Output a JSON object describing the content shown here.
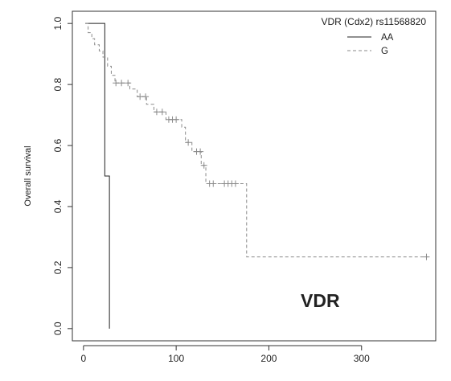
{
  "chart_data": {
    "type": "line",
    "subtype": "kaplan-meier",
    "title": "",
    "xlabel": "",
    "ylabel": "Overall survival",
    "xlim": [
      -12,
      380
    ],
    "ylim": [
      -0.04,
      1.04
    ],
    "x_ticks": [
      0,
      100,
      200,
      300
    ],
    "y_ticks": [
      0.0,
      0.2,
      0.4,
      0.6,
      0.8,
      1.0
    ],
    "x_tick_labels": [
      "0",
      "100",
      "200",
      "300"
    ],
    "y_tick_labels": [
      "0.0",
      "0.2",
      "0.4",
      "0.6",
      "0.8",
      "1.0"
    ],
    "grid": false,
    "legend": {
      "title": "VDR (Cdx2) rs11568820",
      "placement": "top-right",
      "entries": [
        {
          "label": "AA",
          "line_style": "solid"
        },
        {
          "label": "G",
          "line_style": "dashed"
        }
      ]
    },
    "annotation": {
      "text": "VDR",
      "color": "#e8306a"
    },
    "series": [
      {
        "name": "AA",
        "color": "#222222",
        "line_style": "solid",
        "steps": [
          [
            2,
            1.0
          ],
          [
            23,
            0.5
          ],
          [
            28,
            0.0
          ]
        ],
        "censored": []
      },
      {
        "name": "G",
        "color": "#8a8a8a",
        "line_style": "dashed",
        "steps": [
          [
            2,
            1.0
          ],
          [
            5,
            0.97
          ],
          [
            9,
            0.95
          ],
          [
            12,
            0.93
          ],
          [
            17,
            0.91
          ],
          [
            21,
            0.89
          ],
          [
            26,
            0.86
          ],
          [
            30,
            0.83
          ],
          [
            34,
            0.805
          ],
          [
            50,
            0.785
          ],
          [
            58,
            0.76
          ],
          [
            68,
            0.735
          ],
          [
            76,
            0.71
          ],
          [
            89,
            0.685
          ],
          [
            106,
            0.66
          ],
          [
            110,
            0.61
          ],
          [
            117,
            0.58
          ],
          [
            127,
            0.535
          ],
          [
            132,
            0.475
          ],
          [
            176,
            0.235
          ],
          [
            372,
            0.235
          ]
        ],
        "censored": [
          [
            35,
            0.805
          ],
          [
            41,
            0.805
          ],
          [
            48,
            0.805
          ],
          [
            61,
            0.76
          ],
          [
            67,
            0.76
          ],
          [
            79,
            0.71
          ],
          [
            85,
            0.71
          ],
          [
            92,
            0.685
          ],
          [
            96,
            0.685
          ],
          [
            100,
            0.685
          ],
          [
            113,
            0.61
          ],
          [
            122,
            0.58
          ],
          [
            126,
            0.58
          ],
          [
            130,
            0.535
          ],
          [
            136,
            0.475
          ],
          [
            140,
            0.475
          ],
          [
            152,
            0.475
          ],
          [
            156,
            0.475
          ],
          [
            160,
            0.475
          ],
          [
            164,
            0.475
          ],
          [
            370,
            0.235
          ]
        ]
      }
    ]
  }
}
